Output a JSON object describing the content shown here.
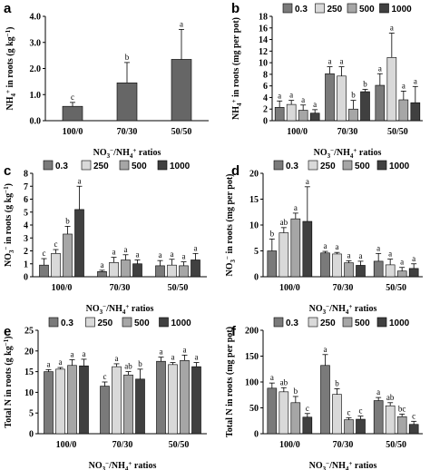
{
  "colors": {
    "panel_a_bar": "#666666",
    "series": [
      "#7a7a7a",
      "#d9d9d9",
      "#a6a6a6",
      "#404040"
    ],
    "stroke": "#000000"
  },
  "chart_data": [
    {
      "id": "a",
      "panel_label": "a",
      "type": "bar",
      "categories": [
        "100/0",
        "70/30",
        "50/50"
      ],
      "xlabel": "NO3⁻/NH4⁺ ratios",
      "ylabel": "NH4⁺ in roots (g kg⁻¹)",
      "ylim": [
        0,
        4.0
      ],
      "yticks": [
        "0.0",
        "1.0",
        "2.0",
        "3.0",
        "4.0"
      ],
      "yticks_values": [
        0,
        1,
        2,
        3,
        4
      ],
      "series": [
        {
          "values": [
            0.55,
            1.45,
            2.35
          ],
          "errors": [
            0.15,
            0.78,
            1.15
          ],
          "letters": [
            "c",
            "b",
            "a"
          ]
        }
      ]
    },
    {
      "id": "b",
      "panel_label": "b",
      "type": "bar",
      "categories": [
        "100/0",
        "70/30",
        "50/50"
      ],
      "xlabel": "NO3⁻/NH4⁺ ratios",
      "ylabel": "NH4⁺ in roots (mg per pot)",
      "ylim": [
        0,
        18
      ],
      "yticks": [
        "0",
        "2",
        "4",
        "6",
        "8",
        "10",
        "12",
        "14",
        "16",
        "18"
      ],
      "yticks_values": [
        0,
        2,
        4,
        6,
        8,
        10,
        12,
        14,
        16,
        18
      ],
      "legend": [
        "0.3",
        "250",
        "500",
        "1000"
      ],
      "series": [
        {
          "name": "0.3",
          "values": [
            2.3,
            8.1,
            6.1
          ],
          "errors": [
            1.1,
            1.2,
            2.0
          ],
          "letters": [
            "a",
            "a",
            "a"
          ]
        },
        {
          "name": "250",
          "values": [
            2.8,
            7.7,
            10.9
          ],
          "errors": [
            0.7,
            1.6,
            4.2
          ],
          "letters": [
            "a",
            "a",
            "a"
          ]
        },
        {
          "name": "500",
          "values": [
            1.8,
            2.0,
            3.6
          ],
          "errors": [
            0.9,
            1.5,
            1.5
          ],
          "letters": [
            "a",
            "b",
            "a"
          ]
        },
        {
          "name": "1000",
          "values": [
            1.3,
            5.0,
            3.1
          ],
          "errors": [
            0.6,
            0.4,
            2.8
          ],
          "letters": [
            "a",
            "b",
            "a"
          ]
        }
      ]
    },
    {
      "id": "c",
      "panel_label": "c",
      "type": "bar",
      "categories": [
        "100/0",
        "70/30",
        "50/50"
      ],
      "xlabel": "NO3⁻/NH4⁺ ratios",
      "ylabel": "NO3⁻ in roots (g kg⁻¹)",
      "ylim": [
        0,
        8
      ],
      "yticks": [
        "0",
        "1",
        "2",
        "3",
        "4",
        "5",
        "6",
        "7",
        "8"
      ],
      "yticks_values": [
        0,
        1,
        2,
        3,
        4,
        5,
        6,
        7,
        8
      ],
      "legend": [
        "0.3",
        "250",
        "500",
        "1000"
      ],
      "series": [
        {
          "name": "0.3",
          "values": [
            0.9,
            0.4,
            0.85
          ],
          "errors": [
            0.5,
            0.1,
            0.4
          ],
          "letters": [
            "c",
            "a",
            "a"
          ]
        },
        {
          "name": "250",
          "values": [
            1.8,
            1.1,
            0.9
          ],
          "errors": [
            0.3,
            0.4,
            0.45
          ],
          "letters": [
            "c",
            "a",
            "a"
          ]
        },
        {
          "name": "500",
          "values": [
            3.3,
            1.3,
            0.85
          ],
          "errors": [
            0.6,
            0.4,
            0.3
          ],
          "letters": [
            "b",
            "a",
            "a"
          ]
        },
        {
          "name": "1000",
          "values": [
            5.2,
            1.0,
            1.3
          ],
          "errors": [
            1.8,
            0.3,
            0.5
          ],
          "letters": [
            "a",
            "a",
            "a"
          ]
        }
      ]
    },
    {
      "id": "d",
      "panel_label": "d",
      "type": "bar",
      "categories": [
        "100/0",
        "70/30",
        "50/50"
      ],
      "xlabel": "NO3⁻/NH4⁺ ratios",
      "ylabel": "NO3⁻ in roots (mg per pot)",
      "ylim": [
        0,
        20
      ],
      "yticks": [
        "0",
        "5",
        "10",
        "15",
        "20"
      ],
      "yticks_values": [
        0,
        5,
        10,
        15,
        20
      ],
      "legend": [
        "0.3",
        "250",
        "500",
        "1000"
      ],
      "series": [
        {
          "name": "0.3",
          "values": [
            5.0,
            4.6,
            3.0
          ],
          "errors": [
            2.3,
            0.3,
            1.5
          ],
          "letters": [
            "b",
            "a",
            "a"
          ]
        },
        {
          "name": "250",
          "values": [
            8.5,
            4.4,
            2.3
          ],
          "errors": [
            1.0,
            0.3,
            1.1
          ],
          "letters": [
            "ab",
            "a",
            "a"
          ]
        },
        {
          "name": "500",
          "values": [
            11.2,
            2.7,
            1.1
          ],
          "errors": [
            1.1,
            0.4,
            0.7
          ],
          "letters": [
            "a",
            "a",
            "a"
          ]
        },
        {
          "name": "1000",
          "values": [
            10.7,
            2.2,
            1.6
          ],
          "errors": [
            6.7,
            0.8,
            0.9
          ],
          "letters": [
            "a",
            "a",
            "a"
          ]
        }
      ]
    },
    {
      "id": "e",
      "panel_label": "e",
      "type": "bar",
      "categories": [
        "100/0",
        "70/30",
        "50/50"
      ],
      "xlabel": "NO3⁻/NH4⁺ ratios",
      "ylabel": "Total N in roots (g kg⁻¹)",
      "ylim": [
        0,
        25
      ],
      "yticks": [
        "0",
        "5",
        "10",
        "15",
        "20",
        "25"
      ],
      "yticks_values": [
        0,
        5,
        10,
        15,
        20,
        25
      ],
      "legend": [
        "0.3",
        "250",
        "500",
        "1000"
      ],
      "series": [
        {
          "name": "0.3",
          "values": [
            15.0,
            11.5,
            17.5
          ],
          "errors": [
            0.5,
            1.0,
            1.0
          ],
          "letters": [
            "a",
            "c",
            "a"
          ]
        },
        {
          "name": "250",
          "values": [
            15.6,
            16.2,
            16.7
          ],
          "errors": [
            0.4,
            0.7,
            0.5
          ],
          "letters": [
            "a",
            "a",
            "a"
          ]
        },
        {
          "name": "500",
          "values": [
            16.5,
            14.2,
            17.7
          ],
          "errors": [
            1.4,
            0.8,
            1.3
          ],
          "letters": [
            "a",
            "ab",
            "a"
          ]
        },
        {
          "name": "1000",
          "values": [
            16.4,
            13.2,
            16.2
          ],
          "errors": [
            1.6,
            2.4,
            1.0
          ],
          "letters": [
            "a",
            "b",
            "a"
          ]
        }
      ]
    },
    {
      "id": "f",
      "panel_label": "f",
      "type": "bar",
      "categories": [
        "100/0",
        "70/30",
        "50/50"
      ],
      "xlabel": "NO3⁻/NH4⁺ ratios",
      "ylabel": "Total N in roots (mg per pot)",
      "ylim": [
        0,
        200
      ],
      "yticks": [
        "0",
        "50",
        "100",
        "150",
        "200"
      ],
      "yticks_values": [
        0,
        50,
        100,
        150,
        200
      ],
      "legend": [
        "0.3",
        "250",
        "500",
        "1000"
      ],
      "series": [
        {
          "name": "0.3",
          "values": [
            88,
            132,
            64
          ],
          "errors": [
            10,
            21,
            6
          ],
          "letters": [
            "a",
            "a",
            "a"
          ]
        },
        {
          "name": "250",
          "values": [
            81,
            76,
            54
          ],
          "errors": [
            8,
            11,
            6
          ],
          "letters": [
            "ab",
            "b",
            "ab"
          ]
        },
        {
          "name": "500",
          "values": [
            60,
            27,
            33
          ],
          "errors": [
            12,
            4,
            5
          ],
          "letters": [
            "b",
            "c",
            "bc"
          ]
        },
        {
          "name": "1000",
          "values": [
            32,
            28,
            18
          ],
          "errors": [
            7,
            6,
            6
          ],
          "letters": [
            "c",
            "c",
            "c"
          ]
        }
      ]
    }
  ]
}
